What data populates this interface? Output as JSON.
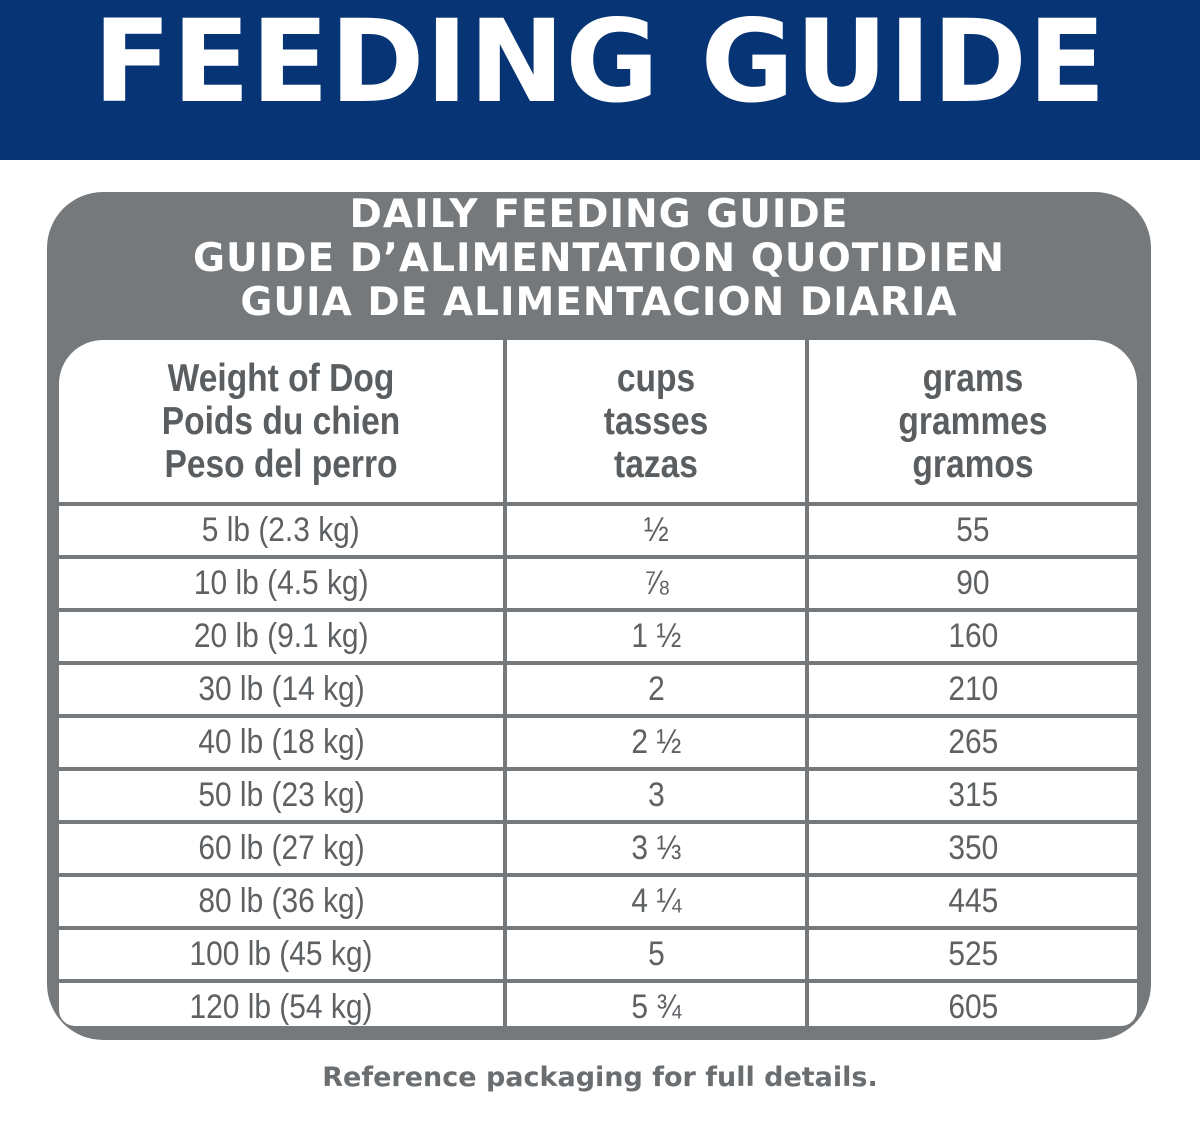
{
  "banner": {
    "title": "FEEDING GUIDE"
  },
  "card": {
    "heading": [
      "DAILY FEEDING GUIDE",
      "GUIDE D’ALIMENTATION QUOTIDIEN",
      "GUIA DE ALIMENTACION DIARIA"
    ]
  },
  "table": {
    "columns": [
      {
        "lines": [
          "Weight of Dog",
          "Poids du chien",
          "Peso del perro"
        ]
      },
      {
        "lines": [
          "cups",
          "tasses",
          "tazas"
        ]
      },
      {
        "lines": [
          "grams",
          "grammes",
          "gramos"
        ]
      }
    ],
    "rows": [
      {
        "weight": "5 lb (2.3 kg)",
        "cups": "½",
        "grams": "55"
      },
      {
        "weight": "10 lb (4.5 kg)",
        "cups": "⅞",
        "grams": "90"
      },
      {
        "weight": "20 lb (9.1 kg)",
        "cups": "1 ½",
        "grams": "160"
      },
      {
        "weight": "30 lb (14 kg)",
        "cups": "2",
        "grams": "210"
      },
      {
        "weight": "40 lb (18 kg)",
        "cups": "2 ½",
        "grams": "265"
      },
      {
        "weight": "50 lb (23 kg)",
        "cups": "3",
        "grams": "315"
      },
      {
        "weight": "60 lb (27 kg)",
        "cups": "3 ⅓",
        "grams": "350"
      },
      {
        "weight": "80 lb (36 kg)",
        "cups": "4 ¼",
        "grams": "445"
      },
      {
        "weight": "100 lb (45 kg)",
        "cups": "5",
        "grams": "525"
      },
      {
        "weight": "120 lb (54 kg)",
        "cups": "5 ¾",
        "grams": "605"
      }
    ]
  },
  "footer": {
    "note": "Reference packaging for full details."
  },
  "colors": {
    "banner": "#063474",
    "card": "#76797b",
    "text": "#5e6164"
  }
}
